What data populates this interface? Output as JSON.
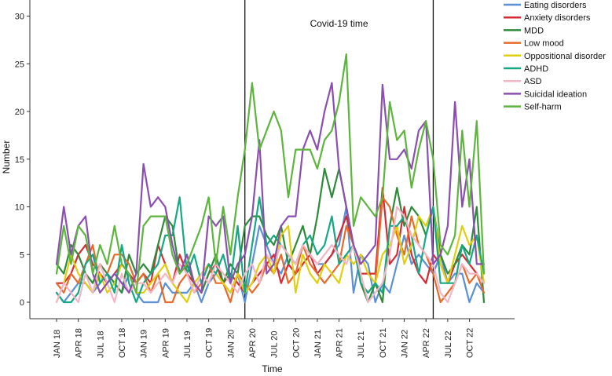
{
  "chart_data": {
    "type": "line",
    "title": "",
    "xlabel": "Time",
    "ylabel": "Number",
    "ylim": [
      -2,
      32
    ],
    "yticks": [
      0,
      5,
      10,
      15,
      20,
      25,
      30
    ],
    "grid": false,
    "legend": "top-right",
    "annotation": {
      "text": "Covid-19 time",
      "start_index": 26,
      "end_index": 52
    },
    "tick_labels": [
      "JAN 18",
      "APR 18",
      "JUL 18",
      "OCT 18",
      "JAN 19",
      "APR 19",
      "JUL 19",
      "OCT 19",
      "JAN 20",
      "APR 20",
      "JUL 20",
      "OCT 20",
      "JAN 21",
      "APR 21",
      "JUL 21",
      "OCT 21",
      "JAN 22",
      "APR 22",
      "JUL 22",
      "OCT 22"
    ],
    "tick_indices": [
      0,
      3,
      6,
      9,
      12,
      15,
      18,
      21,
      24,
      27,
      30,
      33,
      36,
      39,
      42,
      45,
      48,
      51,
      54,
      57
    ],
    "n_points": 60,
    "series": [
      {
        "name": "Eating disorders",
        "color": "#5b8fd6",
        "values": [
          1,
          0,
          1,
          2,
          2,
          1,
          2,
          3,
          2,
          1,
          3,
          1,
          0,
          0,
          0,
          2,
          1,
          1,
          1,
          2,
          0,
          2,
          3,
          2,
          1,
          3,
          0,
          4,
          8,
          6,
          4,
          3,
          5,
          4,
          6,
          5,
          4,
          4,
          5,
          6,
          10,
          1,
          5,
          4,
          0,
          2,
          1,
          4,
          7,
          4,
          5,
          4,
          3,
          5,
          2,
          3,
          3,
          0,
          2,
          1
        ]
      },
      {
        "name": "Anxiety disorders",
        "color": "#d62b35",
        "values": [
          2,
          2,
          3,
          5,
          6,
          4,
          3,
          2,
          3,
          4,
          3,
          2,
          3,
          2,
          6,
          4,
          2,
          5,
          3,
          2,
          1,
          3,
          4,
          2,
          3,
          2,
          1,
          2,
          3,
          4,
          5,
          2,
          4,
          3,
          4,
          5,
          3,
          4,
          5,
          7,
          9,
          6,
          3,
          3,
          3,
          12,
          4,
          5,
          10,
          5,
          3,
          2,
          5,
          4,
          2,
          4,
          5,
          4,
          3,
          2
        ]
      },
      {
        "name": "MDD",
        "color": "#2e8b3a",
        "values": [
          4,
          3,
          6,
          5,
          3,
          2,
          4,
          3,
          2,
          1,
          5,
          3,
          4,
          3,
          6,
          9,
          8,
          3,
          4,
          2,
          1,
          3,
          5,
          2,
          4,
          3,
          8,
          9,
          9,
          7,
          6,
          8,
          4,
          6,
          8,
          5,
          9,
          14,
          11,
          14,
          10,
          6,
          2,
          0,
          2,
          0,
          8,
          12,
          8,
          10,
          9,
          7,
          10,
          5,
          3,
          4,
          6,
          5,
          10,
          0
        ]
      },
      {
        "name": "Low mood",
        "color": "#e86a2a",
        "values": [
          2,
          1,
          3,
          2,
          4,
          6,
          2,
          3,
          5,
          5,
          4,
          2,
          3,
          1,
          3,
          0,
          0,
          2,
          3,
          1,
          2,
          4,
          2,
          2,
          0,
          3,
          2,
          1,
          2,
          4,
          3,
          5,
          2,
          3,
          6,
          4,
          3,
          2,
          3,
          4,
          8,
          6,
          2,
          1,
          2,
          11,
          10,
          7,
          5,
          9,
          6,
          5,
          3,
          0,
          1,
          2,
          4,
          2,
          3,
          1
        ]
      },
      {
        "name": "Oppositional disorder",
        "color": "#e0cf10",
        "values": [
          0,
          2,
          5,
          3,
          2,
          1,
          3,
          1,
          2,
          4,
          3,
          1,
          1,
          2,
          3,
          4,
          2,
          1,
          0,
          2,
          3,
          4,
          3,
          2,
          1,
          3,
          1,
          2,
          4,
          5,
          3,
          7,
          8,
          1,
          5,
          3,
          2,
          4,
          3,
          2,
          5,
          4,
          5,
          3,
          2,
          5,
          6,
          8,
          4,
          6,
          9,
          8,
          10,
          4,
          2,
          5,
          8,
          6,
          7,
          2
        ]
      },
      {
        "name": "ADHD",
        "color": "#14a884",
        "values": [
          1,
          0,
          0,
          1,
          4,
          5,
          2,
          3,
          1,
          6,
          2,
          0,
          2,
          3,
          4,
          7,
          7,
          11,
          3,
          5,
          2,
          4,
          3,
          5,
          2,
          8,
          1,
          6,
          11,
          6,
          7,
          6,
          5,
          4,
          6,
          7,
          5,
          6,
          9,
          4,
          5,
          6,
          2,
          1,
          2,
          1,
          8,
          8,
          9,
          7,
          3,
          7,
          10,
          2,
          2,
          2,
          6,
          4,
          7,
          3
        ]
      },
      {
        "name": "ASD",
        "color": "#f4b6c6",
        "values": [
          0,
          2,
          1,
          0,
          3,
          1,
          4,
          2,
          0,
          3,
          1,
          2,
          2,
          1,
          2,
          3,
          2,
          4,
          3,
          1,
          3,
          2,
          4,
          3,
          2,
          1,
          3,
          4,
          2,
          5,
          4,
          6,
          5,
          4,
          6,
          5,
          4,
          5,
          6,
          5,
          4,
          6,
          3,
          0,
          1,
          2,
          5,
          10,
          9,
          7,
          6,
          5,
          4,
          1,
          0,
          2,
          4,
          3,
          3,
          2
        ]
      },
      {
        "name": "Suicidal ideation",
        "color": "#8a4fb0",
        "values": [
          4,
          10,
          5,
          8,
          9,
          3,
          1,
          2,
          3,
          2,
          1,
          3,
          14.5,
          10,
          11,
          10,
          6,
          3,
          5,
          2,
          1,
          9,
          8,
          9,
          2,
          4,
          5,
          9,
          17,
          3,
          4,
          8,
          9,
          9,
          16,
          18,
          16,
          20,
          23,
          14,
          10,
          6,
          4,
          5,
          6,
          22.8,
          15,
          15,
          16,
          14,
          18,
          19,
          4,
          5,
          8,
          21,
          10,
          15,
          4,
          4
        ]
      },
      {
        "name": "Self-harm",
        "color": "#5db53e",
        "values": [
          3,
          8,
          4,
          8,
          7,
          3,
          6,
          4,
          8,
          4,
          3,
          1,
          8,
          9,
          9,
          9,
          5,
          3,
          4,
          6,
          8,
          11,
          4,
          10,
          5,
          11,
          16,
          23,
          16,
          18,
          20,
          18,
          11,
          16,
          16,
          16,
          14,
          17,
          18,
          21,
          26,
          8,
          11,
          10,
          9,
          11,
          21,
          17,
          18,
          12,
          16,
          19,
          15,
          6,
          5,
          7,
          18,
          10,
          19,
          3
        ]
      }
    ]
  }
}
